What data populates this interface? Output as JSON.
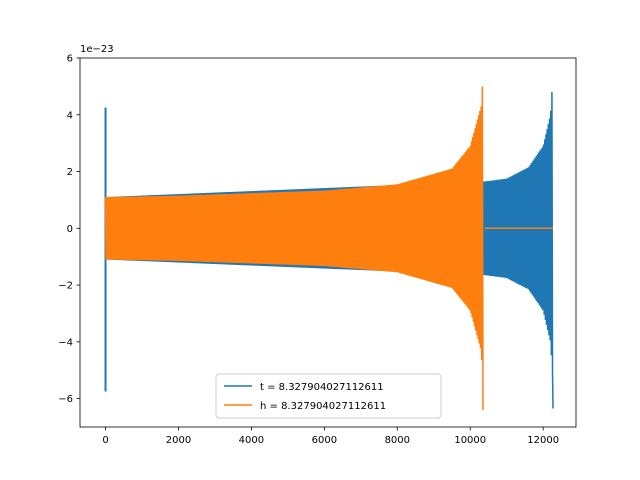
{
  "chart_data": {
    "type": "line",
    "title": "",
    "xlabel": "",
    "ylabel": "",
    "y_offset_label": "1e−23",
    "xlim": [
      -700,
      12900
    ],
    "ylim": [
      -7.0,
      6.0
    ],
    "x_ticks": [
      0,
      2000,
      4000,
      6000,
      8000,
      10000,
      12000
    ],
    "x_tick_labels": [
      "0",
      "2000",
      "4000",
      "6000",
      "8000",
      "10000",
      "12000"
    ],
    "y_ticks": [
      -6,
      -4,
      -2,
      0,
      2,
      4,
      6
    ],
    "y_tick_labels": [
      "−6",
      "−4",
      "−2",
      "0",
      "2",
      "4",
      "6"
    ],
    "grid": false,
    "legend_position": "lower center",
    "series": [
      {
        "name": "t = 8.327904027112611",
        "color": "#1f77b4",
        "description_points": {
          "initial_spike": {
            "x": 0,
            "y_max": 4.25,
            "y_min": -5.75
          },
          "envelope": [
            {
              "x": 0,
              "y": 1.1
            },
            {
              "x": 10400,
              "y": 1.65
            },
            {
              "x": 11000,
              "y": 1.75
            },
            {
              "x": 11600,
              "y": 2.15
            },
            {
              "x": 12000,
              "y": 2.9
            },
            {
              "x": 12200,
              "y": 4.0
            },
            {
              "x": 12270,
              "y": 5.4
            }
          ],
          "end_x": 12270,
          "end_y_min": -6.35
        }
      },
      {
        "name": "h = 8.327904027112611",
        "color": "#ff7f0e",
        "description_points": {
          "envelope": [
            {
              "x": 0,
              "y": 1.1
            },
            {
              "x": 2000,
              "y": 1.15
            },
            {
              "x": 6000,
              "y": 1.33
            },
            {
              "x": 8000,
              "y": 1.55
            },
            {
              "x": 9500,
              "y": 2.1
            },
            {
              "x": 10000,
              "y": 2.9
            },
            {
              "x": 10300,
              "y": 4.3
            },
            {
              "x": 10350,
              "y": 5.4
            }
          ],
          "end_x": 10350,
          "end_y_min": -6.4,
          "flat_after": {
            "x_start": 10400,
            "x_end": 12270,
            "y": 0
          }
        }
      }
    ]
  }
}
